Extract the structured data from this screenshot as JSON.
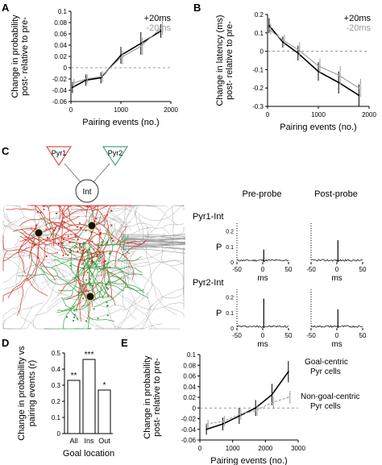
{
  "panels": {
    "A": {
      "letter": "A"
    },
    "B": {
      "letter": "B"
    },
    "C": {
      "letter": "C"
    },
    "D": {
      "letter": "D"
    },
    "E": {
      "letter": "E"
    }
  },
  "colors": {
    "black": "#000000",
    "gray": "#9a9a9a",
    "pyr1": "#d9534f",
    "pyr2": "#4aa58a",
    "trace_red": "#cc2a1d",
    "trace_green": "#2f9e3a",
    "trace_gray": "#9d9d9d"
  },
  "chart_data": [
    {
      "panel": "A",
      "type": "line",
      "xlabel": "Pairing events (no.)",
      "ylabel_line1": "Change in probability",
      "ylabel_line2": "post- relative to pre-",
      "xlim": [
        0,
        2000
      ],
      "ylim": [
        -0.06,
        0.1
      ],
      "xticks": [
        0,
        1000,
        2000
      ],
      "yticks": [
        -0.06,
        -0.04,
        -0.02,
        0,
        0.02,
        0.04,
        0.06,
        0.08,
        0.1
      ],
      "ytick_labels": [
        "-0.06",
        "-0.04",
        "-0.02",
        "0",
        "0.02",
        "0.04",
        "0.06",
        "0.08",
        "0.1"
      ],
      "x": [
        30,
        300,
        600,
        1000,
        1400,
        1800
      ],
      "series": [
        {
          "name": "+20ms",
          "color": "#000000",
          "values": [
            -0.035,
            -0.022,
            -0.018,
            0.022,
            0.043,
            0.065
          ],
          "err": [
            0.01,
            0.01,
            0.01,
            0.015,
            0.02,
            0.012
          ]
        },
        {
          "name": "-20ms",
          "color": "#9a9a9a",
          "values": [
            -0.028,
            -0.02,
            -0.016,
            0.018,
            0.038,
            0.07
          ],
          "err": [
            0.008,
            0.008,
            0.01,
            0.012,
            0.015,
            0.012
          ]
        }
      ],
      "zero_line": true
    },
    {
      "panel": "B",
      "type": "line",
      "xlabel": "Pairing events (no.)",
      "ylabel_line1": "Change in latency (ms)",
      "ylabel_line2": "post- relative to pre-",
      "xlim": [
        0,
        2000
      ],
      "ylim": [
        -0.3,
        0.2
      ],
      "xticks": [
        0,
        1000,
        2000
      ],
      "yticks": [
        -0.3,
        -0.2,
        -0.1,
        0,
        0.1,
        0.2
      ],
      "ytick_labels": [
        "-0.3",
        "-0.2",
        "-0.1",
        "0",
        "0.1",
        "0.2"
      ],
      "x": [
        30,
        300,
        600,
        1000,
        1400,
        1800
      ],
      "series": [
        {
          "name": "+20ms",
          "color": "#000000",
          "values": [
            0.14,
            0.05,
            -0.01,
            -0.11,
            -0.17,
            -0.24
          ],
          "err": [
            0.04,
            0.03,
            0.04,
            0.05,
            0.06,
            0.06
          ]
        },
        {
          "name": "-20ms",
          "color": "#9a9a9a",
          "values": [
            0.12,
            0.06,
            0.01,
            -0.08,
            -0.13,
            -0.2
          ],
          "err": [
            0.03,
            0.03,
            0.04,
            0.04,
            0.05,
            0.05
          ]
        }
      ],
      "zero_line": true
    },
    {
      "panel": "C-top",
      "type": "histogram",
      "row_label": "Pyr1-Int",
      "ylabel": "P",
      "yticks": [
        0,
        0.1,
        0.2
      ],
      "ytick_labels": [
        "0",
        "0.1",
        "0.2"
      ],
      "xticks": [
        -50,
        0,
        50
      ],
      "xlabel": "ms",
      "columns": [
        {
          "title": "Pre-probe",
          "peak": 0.08
        },
        {
          "title": "Post-probe",
          "peak": 0.14
        }
      ]
    },
    {
      "panel": "C-bottom",
      "type": "histogram",
      "row_label": "Pyr2-Int",
      "ylabel": "P",
      "yticks": [
        0,
        0.1,
        0.2
      ],
      "ytick_labels": [
        "0",
        "0.1",
        "0.2"
      ],
      "xticks": [
        -50,
        0,
        50
      ],
      "xlabel": "ms",
      "columns": [
        {
          "title": "Pre-probe",
          "peak": 0.19
        },
        {
          "title": "Post-probe",
          "peak": 0.12
        }
      ]
    },
    {
      "panel": "D",
      "type": "bar",
      "ylabel_line1": "Change in probability vs",
      "ylabel_line2": "pairing events (r)",
      "xlabel": "Goal location",
      "categories": [
        "All",
        "Ins",
        "Out"
      ],
      "values": [
        0.33,
        0.46,
        0.27
      ],
      "significance": [
        "**",
        "***",
        "*"
      ],
      "ylim": [
        0,
        0.5
      ],
      "yticks": [
        0,
        0.1,
        0.2,
        0.3,
        0.4,
        0.5
      ],
      "ytick_labels": [
        "0",
        "0.1",
        "0.2",
        "0.3",
        "0.4",
        "0.5"
      ]
    },
    {
      "panel": "E",
      "type": "line",
      "xlabel": "Pairing events (no.)",
      "ylabel_line1": "Change in probability",
      "ylabel_line2": "post- relative to pre-",
      "xlim": [
        0,
        3000
      ],
      "ylim": [
        -0.06,
        0.1
      ],
      "xticks": [
        0,
        1000,
        2000,
        3000
      ],
      "yticks": [
        -0.06,
        -0.04,
        -0.02,
        0,
        0.02,
        0.04,
        0.06,
        0.08,
        0.1
      ],
      "ytick_labels": [
        "-0.06",
        "-0.04",
        "-0.02",
        "0",
        "0.02",
        "0.04",
        "0.06",
        "0.08",
        "0.1"
      ],
      "x": [
        200,
        700,
        1200,
        1700,
        2200,
        2700
      ],
      "series": [
        {
          "name": "Goal-centric Pyr cells",
          "label_lines": [
            "Goal-centric",
            "Pyr cells"
          ],
          "color": "#000000",
          "dashed": false,
          "values": [
            -0.04,
            -0.03,
            -0.015,
            0.0,
            0.025,
            0.068
          ],
          "err": [
            0.01,
            0.012,
            0.015,
            0.015,
            0.02,
            0.02
          ]
        },
        {
          "name": "Non-goal-centric Pyr cells",
          "label_lines": [
            "Non-goal-centric",
            "Pyr cells"
          ],
          "color": "#9a9a9a",
          "dashed": true,
          "values": [
            -0.03,
            -0.025,
            -0.012,
            -0.005,
            0.01,
            0.02
          ],
          "err": [
            0.008,
            0.01,
            0.01,
            0.01,
            0.012,
            0.012
          ]
        }
      ],
      "zero_line": true
    }
  ],
  "diagram": {
    "nodes": {
      "pyr1": "Pyr1",
      "pyr2": "Pyr2",
      "int": "Int"
    }
  }
}
